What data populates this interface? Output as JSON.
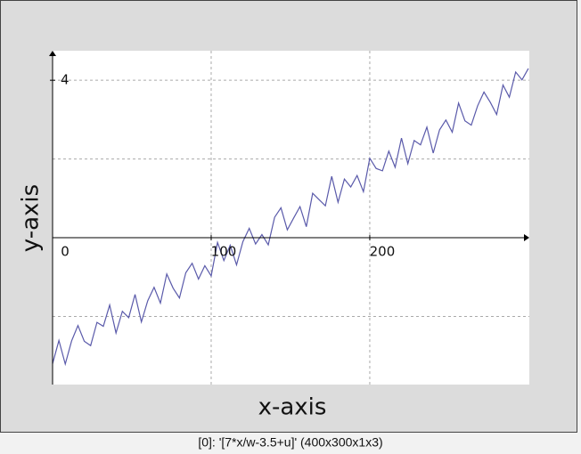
{
  "chart_data": {
    "type": "line",
    "x_label": "x-axis",
    "y_label": "y-axis",
    "caption": "[0]: '[7*x/w-3.5+u]' (400x300x1x3)",
    "x": [
      0,
      4,
      8,
      12,
      16,
      20,
      24,
      28,
      32,
      36,
      40,
      44,
      48,
      52,
      56,
      60,
      64,
      68,
      72,
      76,
      80,
      84,
      88,
      92,
      96,
      100,
      104,
      108,
      112,
      116,
      120,
      124,
      128,
      132,
      136,
      140,
      144,
      148,
      152,
      156,
      160,
      164,
      168,
      172,
      176,
      180,
      184,
      188,
      192,
      196,
      200,
      204,
      208,
      212,
      216,
      220,
      224,
      228,
      232,
      236,
      240,
      244,
      248,
      252,
      256,
      260,
      264,
      268,
      272,
      276,
      280,
      284,
      288,
      292,
      296,
      300
    ],
    "values": [
      -3.2,
      -2.61,
      -3.21,
      -2.62,
      -2.23,
      -2.63,
      -2.74,
      -2.15,
      -2.25,
      -1.71,
      -2.42,
      -1.87,
      -2.03,
      -1.44,
      -2.14,
      -1.6,
      -1.26,
      -1.66,
      -0.92,
      -1.28,
      -1.53,
      -0.89,
      -0.65,
      -1.05,
      -0.71,
      -0.97,
      -0.12,
      -0.58,
      -0.19,
      -0.69,
      -0.1,
      0.24,
      -0.16,
      0.08,
      -0.18,
      0.52,
      0.76,
      0.2,
      0.5,
      0.79,
      0.28,
      1.13,
      0.97,
      0.81,
      1.56,
      0.9,
      1.49,
      1.29,
      1.58,
      1.17,
      2.02,
      1.76,
      1.7,
      2.2,
      1.79,
      2.53,
      1.88,
      2.47,
      2.36,
      2.81,
      2.15,
      2.74,
      2.99,
      2.68,
      3.42,
      2.97,
      2.86,
      3.35,
      3.7,
      3.44,
      3.13,
      3.88,
      3.57,
      4.21,
      4.01,
      4.3
    ],
    "color": "#5a5aaa",
    "xlim": [
      0,
      300.6
    ],
    "ylim": [
      -3.73,
      4.75
    ],
    "xticks": [
      0,
      100,
      200
    ],
    "yticks": [
      4
    ],
    "xgrid": [
      100,
      200
    ],
    "ygrid": [
      -2,
      2,
      4
    ]
  }
}
